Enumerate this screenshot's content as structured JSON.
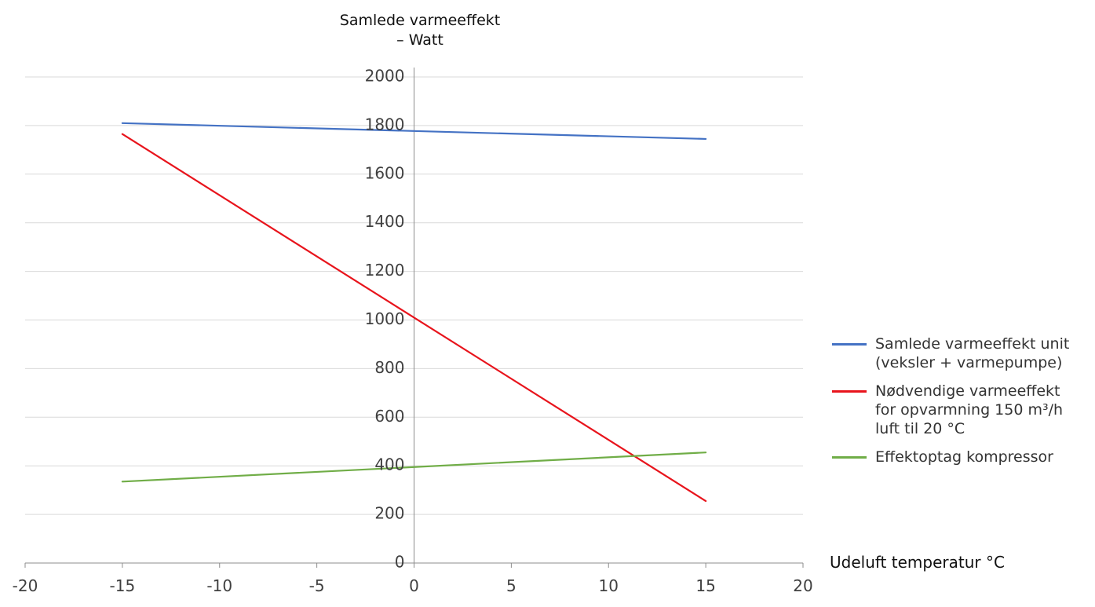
{
  "chart_data": {
    "type": "line",
    "title": "",
    "ylabel_line1": "Samlede varmeeffekt",
    "ylabel_line2": "– Watt",
    "xlabel": "Udeluft temperatur °C",
    "xlim": [
      -20,
      20
    ],
    "ylim": [
      0,
      2000
    ],
    "x_ticks": [
      -20,
      -15,
      -10,
      -5,
      0,
      5,
      10,
      15,
      20
    ],
    "y_ticks": [
      0,
      200,
      400,
      600,
      800,
      1000,
      1200,
      1400,
      1600,
      1800,
      2000
    ],
    "grid": true,
    "legend_position": "right",
    "series": [
      {
        "name": "Samlede varmeeffekt unit\n(veksler + varmepumpe)",
        "color": "#4472c4",
        "x": [
          -15,
          15
        ],
        "values": [
          1810,
          1745
        ]
      },
      {
        "name": "Nødvendige varmeeffekt\nfor opvarmning 150 m³/h\nluft til 20 °C",
        "color": "#e8141c",
        "x": [
          -15,
          15
        ],
        "values": [
          1765,
          255
        ]
      },
      {
        "name": "Effektoptag kompressor",
        "color": "#70ad47",
        "x": [
          -15,
          15
        ],
        "values": [
          335,
          455
        ]
      }
    ]
  }
}
